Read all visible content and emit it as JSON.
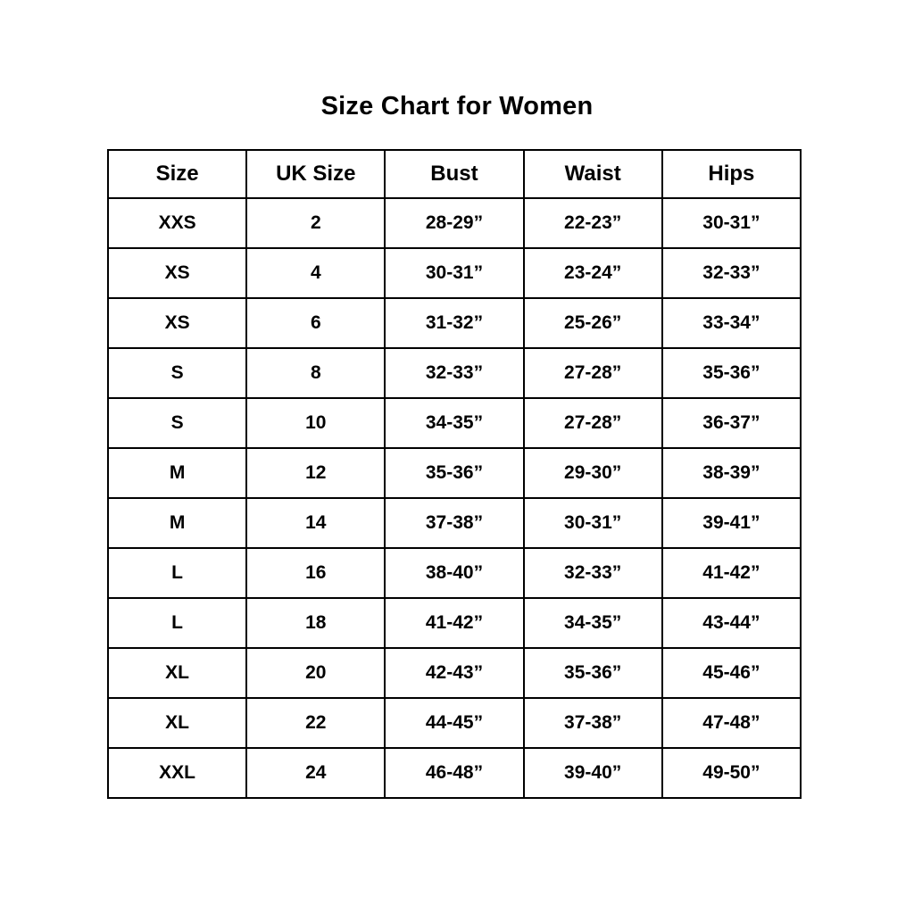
{
  "page": {
    "title": "Size Chart for Women"
  },
  "chart_data": {
    "type": "table",
    "title": "Size Chart for Women",
    "columns": [
      "Size",
      "UK Size",
      "Bust",
      "Waist",
      "Hips"
    ],
    "rows": [
      [
        "XXS",
        "2",
        "28-29”",
        "22-23”",
        "30-31”"
      ],
      [
        "XS",
        "4",
        "30-31”",
        "23-24”",
        "32-33”"
      ],
      [
        "XS",
        "6",
        "31-32”",
        "25-26”",
        "33-34”"
      ],
      [
        "S",
        "8",
        "32-33”",
        "27-28”",
        "35-36”"
      ],
      [
        "S",
        "10",
        "34-35”",
        "27-28”",
        "36-37”"
      ],
      [
        "M",
        "12",
        "35-36”",
        "29-30”",
        "38-39”"
      ],
      [
        "M",
        "14",
        "37-38”",
        "30-31”",
        "39-41”"
      ],
      [
        "L",
        "16",
        "38-40”",
        "32-33”",
        "41-42”"
      ],
      [
        "L",
        "18",
        "41-42”",
        "34-35”",
        "43-44”"
      ],
      [
        "XL",
        "20",
        "42-43”",
        "35-36”",
        "45-46”"
      ],
      [
        "XL",
        "22",
        "44-45”",
        "37-38”",
        "47-48”"
      ],
      [
        "XXL",
        "24",
        "46-48”",
        "39-40”",
        "49-50”"
      ]
    ],
    "layout": {
      "background": "#ffffff",
      "border_color": "#000000",
      "text_color": "#000000",
      "title_position": "top-center"
    }
  }
}
